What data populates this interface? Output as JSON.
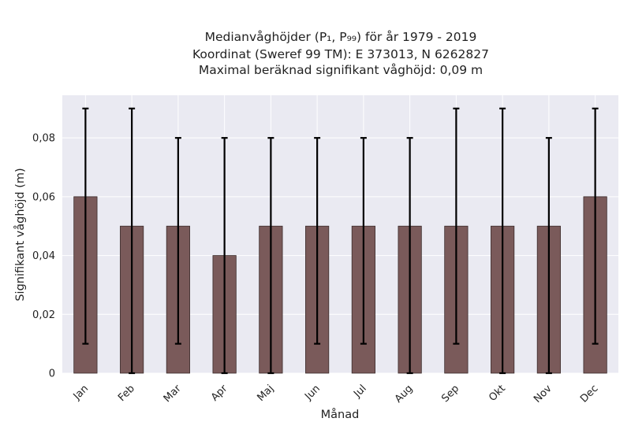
{
  "title_lines": [
    "Medianvåghöjder (P₁, P₉₉) för år 1979 - 2019",
    "Koordinat (Sweref 99 TM): E 373013, N 6262827",
    "Maximal beräknad signifikant våghöjd: 0,09 m"
  ],
  "colors": {
    "plot_background": "#eaeaf2",
    "grid": "#ffffff",
    "bar_fill": "#7a5a5a",
    "bar_edge": "#3a2a2a",
    "error_bar": "#000000"
  },
  "chart_data": {
    "type": "bar",
    "categories": [
      "Jan",
      "Feb",
      "Mar",
      "Apr",
      "Maj",
      "Jun",
      "Jul",
      "Aug",
      "Sep",
      "Okt",
      "Nov",
      "Dec"
    ],
    "values": [
      0.06,
      0.05,
      0.05,
      0.04,
      0.05,
      0.05,
      0.05,
      0.05,
      0.05,
      0.05,
      0.05,
      0.06
    ],
    "p1": [
      0.01,
      0.0,
      0.01,
      0.0,
      0.0,
      0.01,
      0.01,
      0.0,
      0.01,
      0.0,
      0.0,
      0.01
    ],
    "p99": [
      0.09,
      0.09,
      0.08,
      0.08,
      0.08,
      0.08,
      0.08,
      0.08,
      0.09,
      0.09,
      0.08,
      0.09
    ],
    "xlabel": "Månad",
    "ylabel": "Signifikant våghöjd (m)",
    "ylim": [
      0,
      0.0945
    ],
    "yticks": [
      0,
      0.02,
      0.04,
      0.06,
      0.08
    ],
    "ytick_labels": [
      "0",
      "0,02",
      "0,04",
      "0,06",
      "0,08"
    ],
    "grid": true,
    "legend": false
  }
}
